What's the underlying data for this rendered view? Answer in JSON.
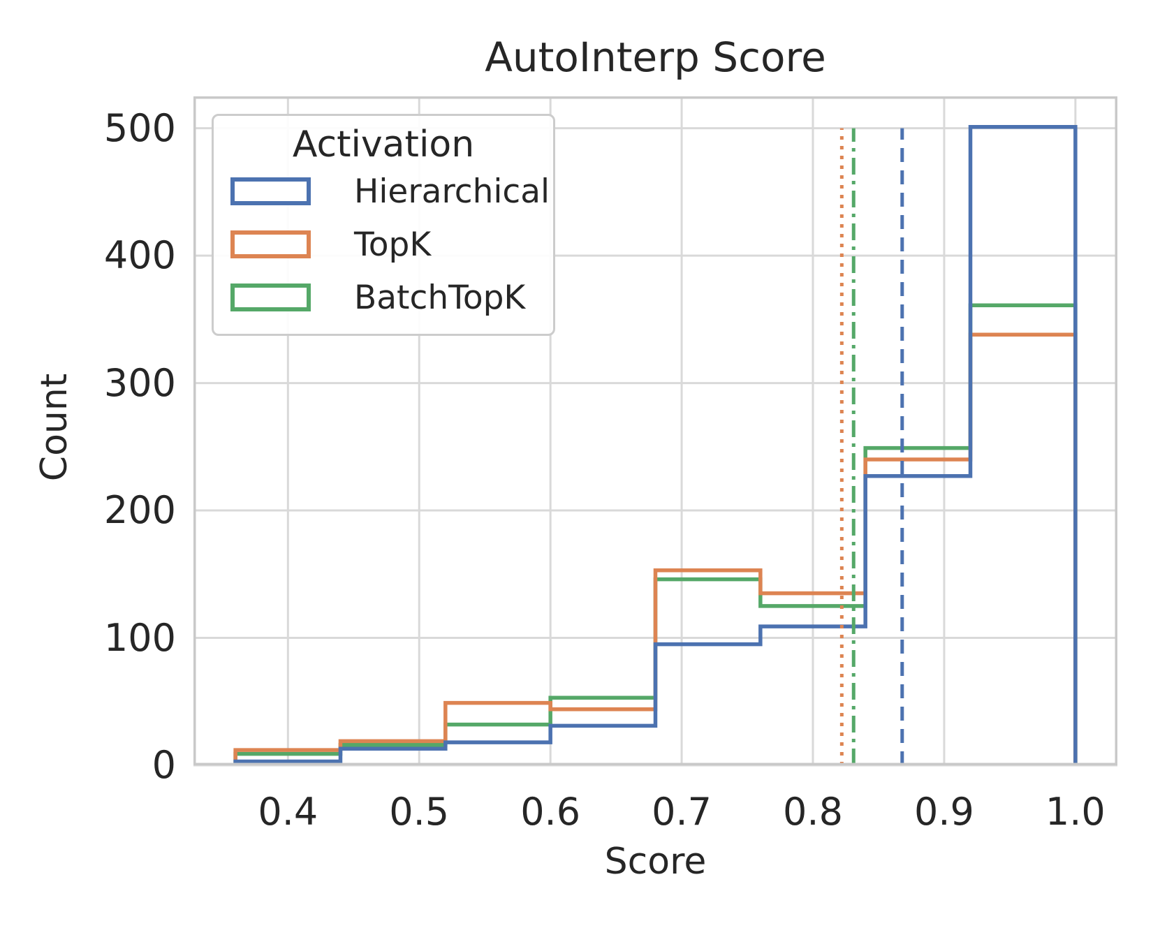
{
  "title": "AutoInterp Score",
  "x_axis": {
    "label": "Score",
    "tick_labels": [
      "0.4",
      "0.5",
      "0.6",
      "0.7",
      "0.8",
      "0.9",
      "1.0"
    ],
    "tick_values": [
      0.4,
      0.5,
      0.6,
      0.7,
      0.8,
      0.9,
      1.0
    ],
    "lim": [
      0.328,
      1.032
    ]
  },
  "y_axis": {
    "label": "Count",
    "tick_labels": [
      "0",
      "100",
      "200",
      "300",
      "400",
      "500"
    ],
    "tick_values": [
      0,
      100,
      200,
      300,
      400,
      500
    ],
    "lim": [
      0,
      525
    ]
  },
  "legend": {
    "title": "Activation",
    "entries": [
      {
        "label": "Hierarchical",
        "color": "#4C72B0"
      },
      {
        "label": "TopK",
        "color": "#DD8452"
      },
      {
        "label": "BatchTopK",
        "color": "#55A868"
      }
    ]
  },
  "style_colors": {
    "grid": "#d9d9d9",
    "spine": "#c9c9c9",
    "text": "#262626",
    "background": "#ffffff"
  },
  "chart_data": {
    "type": "bar",
    "subtype": "step-histogram",
    "title": "AutoInterp Score",
    "xlabel": "Score",
    "ylabel": "Count",
    "xlim": [
      0.328,
      1.032
    ],
    "ylim": [
      0,
      525
    ],
    "grid": true,
    "legend_position": "upper-left",
    "bin_edges": [
      0.36,
      0.44,
      0.52,
      0.6,
      0.68,
      0.76,
      0.84,
      0.92,
      1.0
    ],
    "series": [
      {
        "name": "Hierarchical",
        "color": "#4C72B0",
        "counts": [
          3,
          13,
          18,
          31,
          95,
          109,
          227,
          501
        ],
        "mean": 0.868,
        "mean_linestyle": "dashed"
      },
      {
        "name": "TopK",
        "color": "#DD8452",
        "counts": [
          12,
          19,
          49,
          44,
          153,
          135,
          240,
          338
        ],
        "mean": 0.822,
        "mean_linestyle": "dotted"
      },
      {
        "name": "BatchTopK",
        "color": "#55A868",
        "counts": [
          9,
          16,
          32,
          53,
          146,
          125,
          249,
          361
        ],
        "mean": 0.831,
        "mean_linestyle": "dashdot"
      }
    ],
    "mean_line_extent": [
      0,
      500
    ],
    "draw_order": [
      "BatchTopK",
      "TopK",
      "Hierarchical"
    ]
  }
}
